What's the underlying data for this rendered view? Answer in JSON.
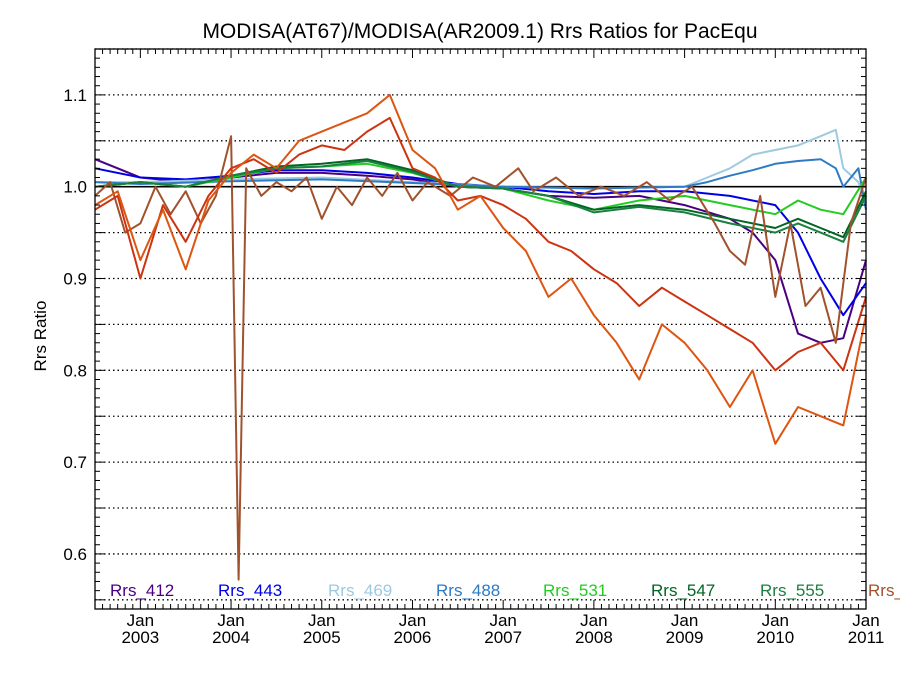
{
  "chart_data": {
    "type": "line",
    "title": "MODISA(AT67)/MODISA(AR2009.1)  Rrs Ratios for PacEqu",
    "xlabel": "",
    "ylabel": "Rrs Ratio",
    "xlim": [
      "2002-07",
      "2011-01"
    ],
    "ylim": [
      0.54,
      1.15
    ],
    "yticks": [
      {
        "v": 0.6,
        "label": "0.6"
      },
      {
        "v": 0.7,
        "label": "0.7"
      },
      {
        "v": 0.8,
        "label": "0.8"
      },
      {
        "v": 0.9,
        "label": "0.9"
      },
      {
        "v": 1.0,
        "label": "1.0"
      },
      {
        "v": 1.1,
        "label": "1.1"
      }
    ],
    "xticks": [
      {
        "date": "2003-01",
        "month": "Jan",
        "year": "2003"
      },
      {
        "date": "2004-01",
        "month": "Jan",
        "year": "2004"
      },
      {
        "date": "2005-01",
        "month": "Jan",
        "year": "2005"
      },
      {
        "date": "2006-01",
        "month": "Jan",
        "year": "2006"
      },
      {
        "date": "2007-01",
        "month": "Jan",
        "year": "2007"
      },
      {
        "date": "2008-01",
        "month": "Jan",
        "year": "2008"
      },
      {
        "date": "2009-01",
        "month": "Jan",
        "year": "2009"
      },
      {
        "date": "2010-01",
        "month": "Jan",
        "year": "2010"
      },
      {
        "date": "2011-01",
        "month": "Jan",
        "year": "2011"
      }
    ],
    "grid": "horizontal dotted",
    "reference_line": 1.0,
    "legend_placement": "bottom",
    "series": [
      {
        "name": "Rrs_412",
        "color": "#4b0082",
        "points": [
          [
            "2002-07",
            1.03
          ],
          [
            "2003-01",
            1.01
          ],
          [
            "2003-07",
            1.005
          ],
          [
            "2004-01",
            1.01
          ],
          [
            "2004-07",
            1.015
          ],
          [
            "2005-01",
            1.015
          ],
          [
            "2005-07",
            1.012
          ],
          [
            "2006-01",
            1.008
          ],
          [
            "2006-07",
            1.0
          ],
          [
            "2007-01",
            0.998
          ],
          [
            "2007-07",
            0.99
          ],
          [
            "2008-01",
            0.988
          ],
          [
            "2008-07",
            0.99
          ],
          [
            "2009-01",
            0.98
          ],
          [
            "2009-07",
            0.965
          ],
          [
            "2009-10",
            0.95
          ],
          [
            "2010-01",
            0.92
          ],
          [
            "2010-04",
            0.84
          ],
          [
            "2010-07",
            0.83
          ],
          [
            "2010-10",
            0.835
          ],
          [
            "2011-01",
            0.92
          ]
        ]
      },
      {
        "name": "Rrs_443",
        "color": "#0000e6",
        "points": [
          [
            "2002-07",
            1.02
          ],
          [
            "2003-01",
            1.01
          ],
          [
            "2003-07",
            1.008
          ],
          [
            "2004-01",
            1.012
          ],
          [
            "2004-07",
            1.018
          ],
          [
            "2005-01",
            1.018
          ],
          [
            "2005-07",
            1.015
          ],
          [
            "2006-01",
            1.01
          ],
          [
            "2006-07",
            1.003
          ],
          [
            "2007-01",
            1.0
          ],
          [
            "2007-07",
            0.995
          ],
          [
            "2008-01",
            0.992
          ],
          [
            "2008-07",
            0.995
          ],
          [
            "2009-01",
            0.995
          ],
          [
            "2009-07",
            0.99
          ],
          [
            "2010-01",
            0.98
          ],
          [
            "2010-04",
            0.95
          ],
          [
            "2010-07",
            0.9
          ],
          [
            "2010-10",
            0.86
          ],
          [
            "2011-01",
            0.895
          ]
        ]
      },
      {
        "name": "Rrs_469",
        "color": "#9ecae1",
        "points": [
          [
            "2002-07",
            1.005
          ],
          [
            "2003-01",
            1.005
          ],
          [
            "2004-01",
            1.008
          ],
          [
            "2005-01",
            1.01
          ],
          [
            "2006-01",
            1.005
          ],
          [
            "2007-01",
            1.0
          ],
          [
            "2008-01",
            0.998
          ],
          [
            "2009-01",
            1.0
          ],
          [
            "2009-04",
            1.01
          ],
          [
            "2009-07",
            1.02
          ],
          [
            "2009-10",
            1.035
          ],
          [
            "2010-01",
            1.04
          ],
          [
            "2010-04",
            1.045
          ],
          [
            "2010-07",
            1.055
          ],
          [
            "2010-09",
            1.062
          ],
          [
            "2010-10",
            1.02
          ],
          [
            "2010-12",
            1.005
          ],
          [
            "2011-01",
            0.98
          ]
        ]
      },
      {
        "name": "Rrs_488",
        "color": "#2e7bc4",
        "points": [
          [
            "2002-07",
            1.005
          ],
          [
            "2003-01",
            1.003
          ],
          [
            "2004-01",
            1.006
          ],
          [
            "2005-01",
            1.008
          ],
          [
            "2006-01",
            1.004
          ],
          [
            "2007-01",
            1.0
          ],
          [
            "2008-01",
            0.998
          ],
          [
            "2009-01",
            1.0
          ],
          [
            "2009-04",
            1.005
          ],
          [
            "2009-07",
            1.012
          ],
          [
            "2009-10",
            1.018
          ],
          [
            "2010-01",
            1.025
          ],
          [
            "2010-04",
            1.028
          ],
          [
            "2010-07",
            1.03
          ],
          [
            "2010-09",
            1.02
          ],
          [
            "2010-10",
            1.0
          ],
          [
            "2010-12",
            1.02
          ],
          [
            "2011-01",
            0.975
          ]
        ]
      },
      {
        "name": "Rrs_531",
        "color": "#22cc22",
        "points": [
          [
            "2002-07",
            1.0
          ],
          [
            "2003-01",
            1.005
          ],
          [
            "2003-07",
            1.0
          ],
          [
            "2004-01",
            1.01
          ],
          [
            "2004-07",
            1.02
          ],
          [
            "2005-01",
            1.022
          ],
          [
            "2005-07",
            1.025
          ],
          [
            "2006-01",
            1.015
          ],
          [
            "2006-07",
            1.0
          ],
          [
            "2007-01",
            0.998
          ],
          [
            "2007-07",
            0.985
          ],
          [
            "2008-01",
            0.975
          ],
          [
            "2008-07",
            0.985
          ],
          [
            "2009-01",
            0.99
          ],
          [
            "2009-07",
            0.98
          ],
          [
            "2010-01",
            0.97
          ],
          [
            "2010-04",
            0.985
          ],
          [
            "2010-07",
            0.975
          ],
          [
            "2010-10",
            0.97
          ],
          [
            "2011-01",
            1.01
          ]
        ]
      },
      {
        "name": "Rrs_547",
        "color": "#006622",
        "points": [
          [
            "2002-07",
            1.0
          ],
          [
            "2003-01",
            1.005
          ],
          [
            "2003-07",
            1.0
          ],
          [
            "2004-01",
            1.012
          ],
          [
            "2004-07",
            1.022
          ],
          [
            "2005-01",
            1.025
          ],
          [
            "2005-07",
            1.03
          ],
          [
            "2006-01",
            1.018
          ],
          [
            "2006-07",
            1.0
          ],
          [
            "2007-01",
            0.998
          ],
          [
            "2007-07",
            0.99
          ],
          [
            "2008-01",
            0.975
          ],
          [
            "2008-07",
            0.98
          ],
          [
            "2009-01",
            0.975
          ],
          [
            "2009-07",
            0.965
          ],
          [
            "2010-01",
            0.955
          ],
          [
            "2010-04",
            0.965
          ],
          [
            "2010-07",
            0.955
          ],
          [
            "2010-10",
            0.945
          ],
          [
            "2011-01",
            0.995
          ]
        ]
      },
      {
        "name": "Rrs_555",
        "color": "#1a8040",
        "points": [
          [
            "2002-07",
            1.0
          ],
          [
            "2003-01",
            1.005
          ],
          [
            "2003-07",
            1.0
          ],
          [
            "2004-01",
            1.012
          ],
          [
            "2004-07",
            1.02
          ],
          [
            "2005-01",
            1.022
          ],
          [
            "2005-07",
            1.028
          ],
          [
            "2006-01",
            1.016
          ],
          [
            "2006-07",
            1.0
          ],
          [
            "2007-01",
            0.998
          ],
          [
            "2007-07",
            0.99
          ],
          [
            "2008-01",
            0.972
          ],
          [
            "2008-07",
            0.978
          ],
          [
            "2009-01",
            0.972
          ],
          [
            "2009-07",
            0.96
          ],
          [
            "2010-01",
            0.95
          ],
          [
            "2010-04",
            0.96
          ],
          [
            "2010-07",
            0.95
          ],
          [
            "2010-10",
            0.94
          ],
          [
            "2011-01",
            0.99
          ]
        ]
      },
      {
        "name": "Rrs_",
        "color": "#a0522d",
        "points": [
          [
            "2002-07",
            0.99
          ],
          [
            "2002-09",
            1.005
          ],
          [
            "2002-11",
            0.95
          ],
          [
            "2003-01",
            0.96
          ],
          [
            "2003-03",
            1.0
          ],
          [
            "2003-05",
            0.97
          ],
          [
            "2003-07",
            0.995
          ],
          [
            "2003-09",
            0.96
          ],
          [
            "2003-11",
            0.99
          ],
          [
            "2004-01",
            1.055
          ],
          [
            "2004-02",
            0.572
          ],
          [
            "2004-03",
            1.02
          ],
          [
            "2004-05",
            0.99
          ],
          [
            "2004-07",
            1.005
          ],
          [
            "2004-09",
            0.995
          ],
          [
            "2004-11",
            1.01
          ],
          [
            "2005-01",
            0.965
          ],
          [
            "2005-03",
            1.0
          ],
          [
            "2005-05",
            0.98
          ],
          [
            "2005-07",
            1.01
          ],
          [
            "2005-09",
            0.99
          ],
          [
            "2005-11",
            1.015
          ],
          [
            "2006-01",
            0.985
          ],
          [
            "2006-03",
            1.005
          ],
          [
            "2006-06",
            0.99
          ],
          [
            "2006-09",
            1.01
          ],
          [
            "2006-12",
            1.0
          ],
          [
            "2007-03",
            1.02
          ],
          [
            "2007-05",
            0.995
          ],
          [
            "2007-08",
            1.01
          ],
          [
            "2007-11",
            0.99
          ],
          [
            "2008-02",
            1.0
          ],
          [
            "2008-05",
            0.99
          ],
          [
            "2008-08",
            1.005
          ],
          [
            "2008-11",
            0.985
          ],
          [
            "2009-02",
            1.0
          ],
          [
            "2009-05",
            0.96
          ],
          [
            "2009-07",
            0.93
          ],
          [
            "2009-09",
            0.915
          ],
          [
            "2009-11",
            0.99
          ],
          [
            "2010-01",
            0.88
          ],
          [
            "2010-03",
            0.96
          ],
          [
            "2010-05",
            0.87
          ],
          [
            "2010-07",
            0.89
          ],
          [
            "2010-09",
            0.83
          ],
          [
            "2010-11",
            0.96
          ],
          [
            "2011-01",
            1.01
          ]
        ]
      },
      {
        "name": "",
        "color": "#cc3311",
        "points": [
          [
            "2002-07",
            0.975
          ],
          [
            "2002-10",
            0.99
          ],
          [
            "2003-01",
            0.9
          ],
          [
            "2003-04",
            0.98
          ],
          [
            "2003-07",
            0.94
          ],
          [
            "2003-10",
            0.99
          ],
          [
            "2004-01",
            1.02
          ],
          [
            "2004-04",
            1.03
          ],
          [
            "2004-07",
            1.015
          ],
          [
            "2004-10",
            1.035
          ],
          [
            "2005-01",
            1.045
          ],
          [
            "2005-04",
            1.04
          ],
          [
            "2005-07",
            1.06
          ],
          [
            "2005-10",
            1.075
          ],
          [
            "2006-01",
            1.02
          ],
          [
            "2006-04",
            1.01
          ],
          [
            "2006-07",
            0.985
          ],
          [
            "2006-10",
            0.99
          ],
          [
            "2007-01",
            0.98
          ],
          [
            "2007-04",
            0.965
          ],
          [
            "2007-07",
            0.94
          ],
          [
            "2007-10",
            0.93
          ],
          [
            "2008-01",
            0.91
          ],
          [
            "2008-04",
            0.895
          ],
          [
            "2008-07",
            0.87
          ],
          [
            "2008-10",
            0.89
          ],
          [
            "2009-01",
            0.875
          ],
          [
            "2009-04",
            0.86
          ],
          [
            "2009-07",
            0.845
          ],
          [
            "2009-10",
            0.83
          ],
          [
            "2010-01",
            0.8
          ],
          [
            "2010-04",
            0.82
          ],
          [
            "2010-07",
            0.83
          ],
          [
            "2010-10",
            0.8
          ],
          [
            "2011-01",
            0.88
          ]
        ]
      },
      {
        "name": "",
        "color": "#dd5511",
        "points": [
          [
            "2002-07",
            0.98
          ],
          [
            "2002-10",
            0.995
          ],
          [
            "2003-01",
            0.92
          ],
          [
            "2003-04",
            0.975
          ],
          [
            "2003-07",
            0.91
          ],
          [
            "2003-10",
            0.985
          ],
          [
            "2004-01",
            1.015
          ],
          [
            "2004-04",
            1.035
          ],
          [
            "2004-07",
            1.02
          ],
          [
            "2004-10",
            1.05
          ],
          [
            "2005-01",
            1.06
          ],
          [
            "2005-04",
            1.07
          ],
          [
            "2005-07",
            1.08
          ],
          [
            "2005-10",
            1.1
          ],
          [
            "2006-01",
            1.04
          ],
          [
            "2006-04",
            1.02
          ],
          [
            "2006-07",
            0.975
          ],
          [
            "2006-10",
            0.99
          ],
          [
            "2007-01",
            0.955
          ],
          [
            "2007-04",
            0.93
          ],
          [
            "2007-07",
            0.88
          ],
          [
            "2007-10",
            0.9
          ],
          [
            "2008-01",
            0.86
          ],
          [
            "2008-04",
            0.83
          ],
          [
            "2008-07",
            0.79
          ],
          [
            "2008-10",
            0.85
          ],
          [
            "2009-01",
            0.83
          ],
          [
            "2009-04",
            0.8
          ],
          [
            "2009-07",
            0.76
          ],
          [
            "2009-10",
            0.8
          ],
          [
            "2010-01",
            0.72
          ],
          [
            "2010-04",
            0.76
          ],
          [
            "2010-07",
            0.75
          ],
          [
            "2010-10",
            0.74
          ],
          [
            "2011-01",
            0.86
          ]
        ]
      }
    ]
  }
}
